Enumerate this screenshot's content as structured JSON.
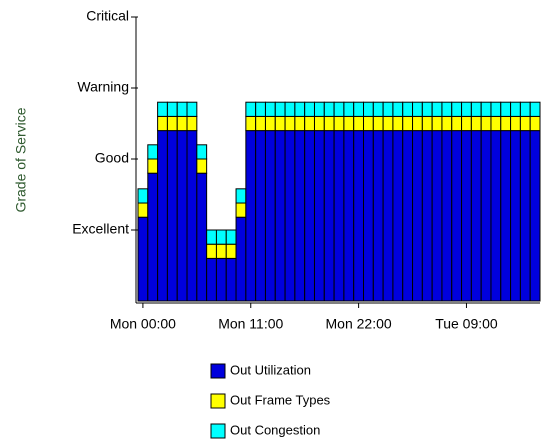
{
  "chart_data": {
    "type": "stacked-bar",
    "ylabel": "Grade of Service",
    "categories": [
      "Mon 00:00",
      null,
      null,
      null,
      null,
      null,
      null,
      null,
      null,
      null,
      null,
      "Mon 11:00",
      null,
      null,
      null,
      null,
      null,
      null,
      null,
      null,
      null,
      null,
      "Mon 22:00",
      null,
      null,
      null,
      null,
      null,
      null,
      null,
      null,
      null,
      null,
      "Tue 09:00",
      null,
      null,
      null,
      null,
      null,
      null,
      null
    ],
    "series": [
      {
        "name": "Out Utilization",
        "color": "#0000dd",
        "values": [
          1.18,
          1.8,
          2.4,
          2.4,
          2.4,
          2.4,
          1.8,
          0.6,
          0.6,
          0.6,
          1.18,
          2.4,
          2.4,
          2.4,
          2.4,
          2.4,
          2.4,
          2.4,
          2.4,
          2.4,
          2.4,
          2.4,
          2.4,
          2.4,
          2.4,
          2.4,
          2.4,
          2.4,
          2.4,
          2.4,
          2.4,
          2.4,
          2.4,
          2.4,
          2.4,
          2.4,
          2.4,
          2.4,
          2.4,
          2.4,
          2.4
        ]
      },
      {
        "name": "Out Frame Types",
        "color": "#ffff00",
        "values": [
          0.2,
          0.2,
          0.2,
          0.2,
          0.2,
          0.2,
          0.2,
          0.2,
          0.2,
          0.2,
          0.2,
          0.2,
          0.2,
          0.2,
          0.2,
          0.2,
          0.2,
          0.2,
          0.2,
          0.2,
          0.2,
          0.2,
          0.2,
          0.2,
          0.2,
          0.2,
          0.2,
          0.2,
          0.2,
          0.2,
          0.2,
          0.2,
          0.2,
          0.2,
          0.2,
          0.2,
          0.2,
          0.2,
          0.2,
          0.2,
          0.2
        ]
      },
      {
        "name": "Out Congestion",
        "color": "#00ffff",
        "values": [
          0.2,
          0.2,
          0.2,
          0.2,
          0.2,
          0.2,
          0.2,
          0.2,
          0.2,
          0.2,
          0.2,
          0.2,
          0.2,
          0.2,
          0.2,
          0.2,
          0.2,
          0.2,
          0.2,
          0.2,
          0.2,
          0.2,
          0.2,
          0.2,
          0.2,
          0.2,
          0.2,
          0.2,
          0.2,
          0.2,
          0.2,
          0.2,
          0.2,
          0.2,
          0.2,
          0.2,
          0.2,
          0.2,
          0.2,
          0.2,
          0.2
        ]
      }
    ],
    "ylim": [
      0,
      4
    ],
    "yticks": [
      {
        "value": 1,
        "label": "Excellent"
      },
      {
        "value": 2,
        "label": "Good"
      },
      {
        "value": 3,
        "label": "Warning"
      },
      {
        "value": 4,
        "label": "Critical"
      }
    ]
  }
}
